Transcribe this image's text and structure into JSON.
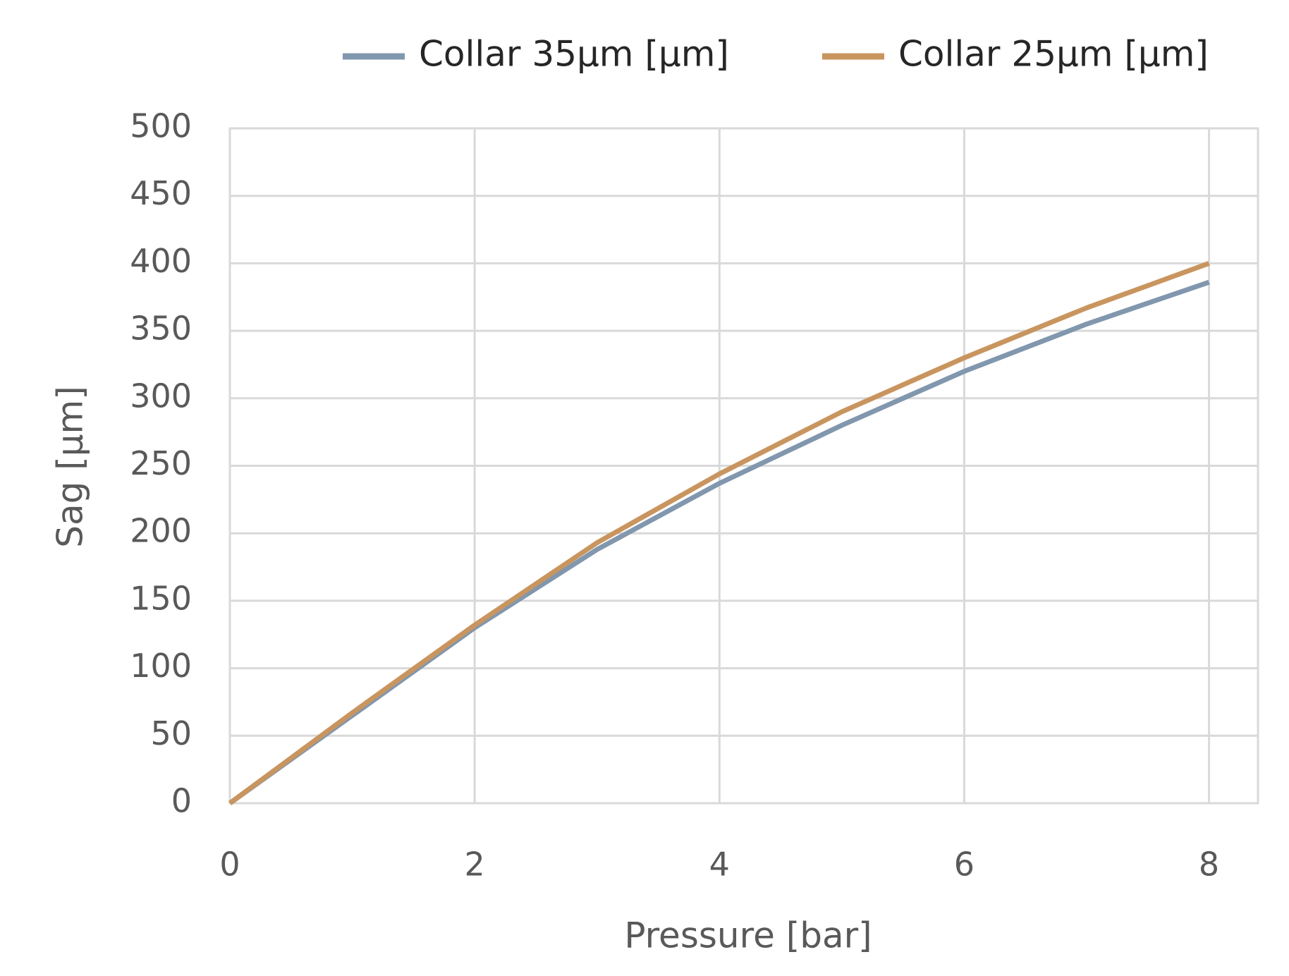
{
  "chart_data": {
    "type": "line",
    "x_label": "Pressure [bar]",
    "y_label": "Sag [µm]",
    "x": [
      0,
      1,
      2,
      3,
      4,
      5,
      6,
      7,
      8
    ],
    "series": [
      {
        "name": "Collar 35µm [µm]",
        "color": "#8197ae",
        "values": [
          0,
          65,
          130,
          188,
          237,
          280,
          320,
          355,
          386
        ]
      },
      {
        "name": "Collar 25µm [µm]",
        "color": "#c9955f",
        "values": [
          0,
          67,
          132,
          193,
          244,
          290,
          330,
          367,
          400
        ]
      }
    ],
    "xlim": [
      0,
      8.4
    ],
    "xticks": [
      0,
      2,
      4,
      6,
      8
    ],
    "ylim": [
      0,
      500
    ],
    "yticks": [
      0,
      50,
      100,
      150,
      200,
      250,
      300,
      350,
      400,
      450,
      500
    ],
    "grid": true,
    "legend": "top"
  }
}
